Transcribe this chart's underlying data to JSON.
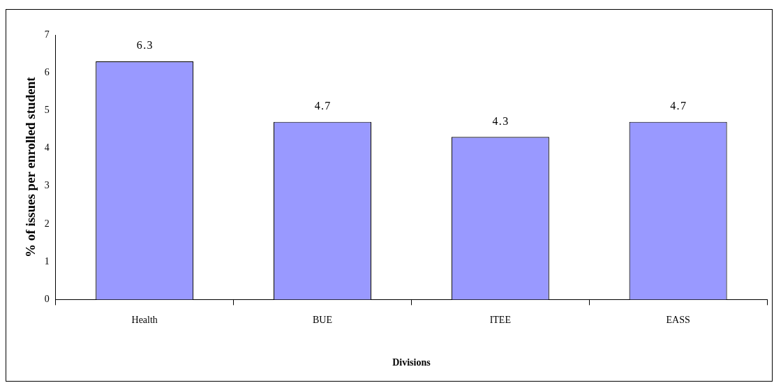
{
  "chart_data": {
    "type": "bar",
    "xlabel": "Divisions",
    "ylabel": "% of issues per enrolled student",
    "categories": [
      "Health",
      "BUE",
      "ITEE",
      "EASS"
    ],
    "values": [
      6.3,
      4.7,
      4.3,
      4.7
    ],
    "color": "#9999ff",
    "ylim": [
      0,
      7
    ],
    "yticks": [
      0,
      1,
      2,
      3,
      4,
      5,
      6,
      7
    ],
    "grid": false,
    "legend": false,
    "data_labels": true
  }
}
